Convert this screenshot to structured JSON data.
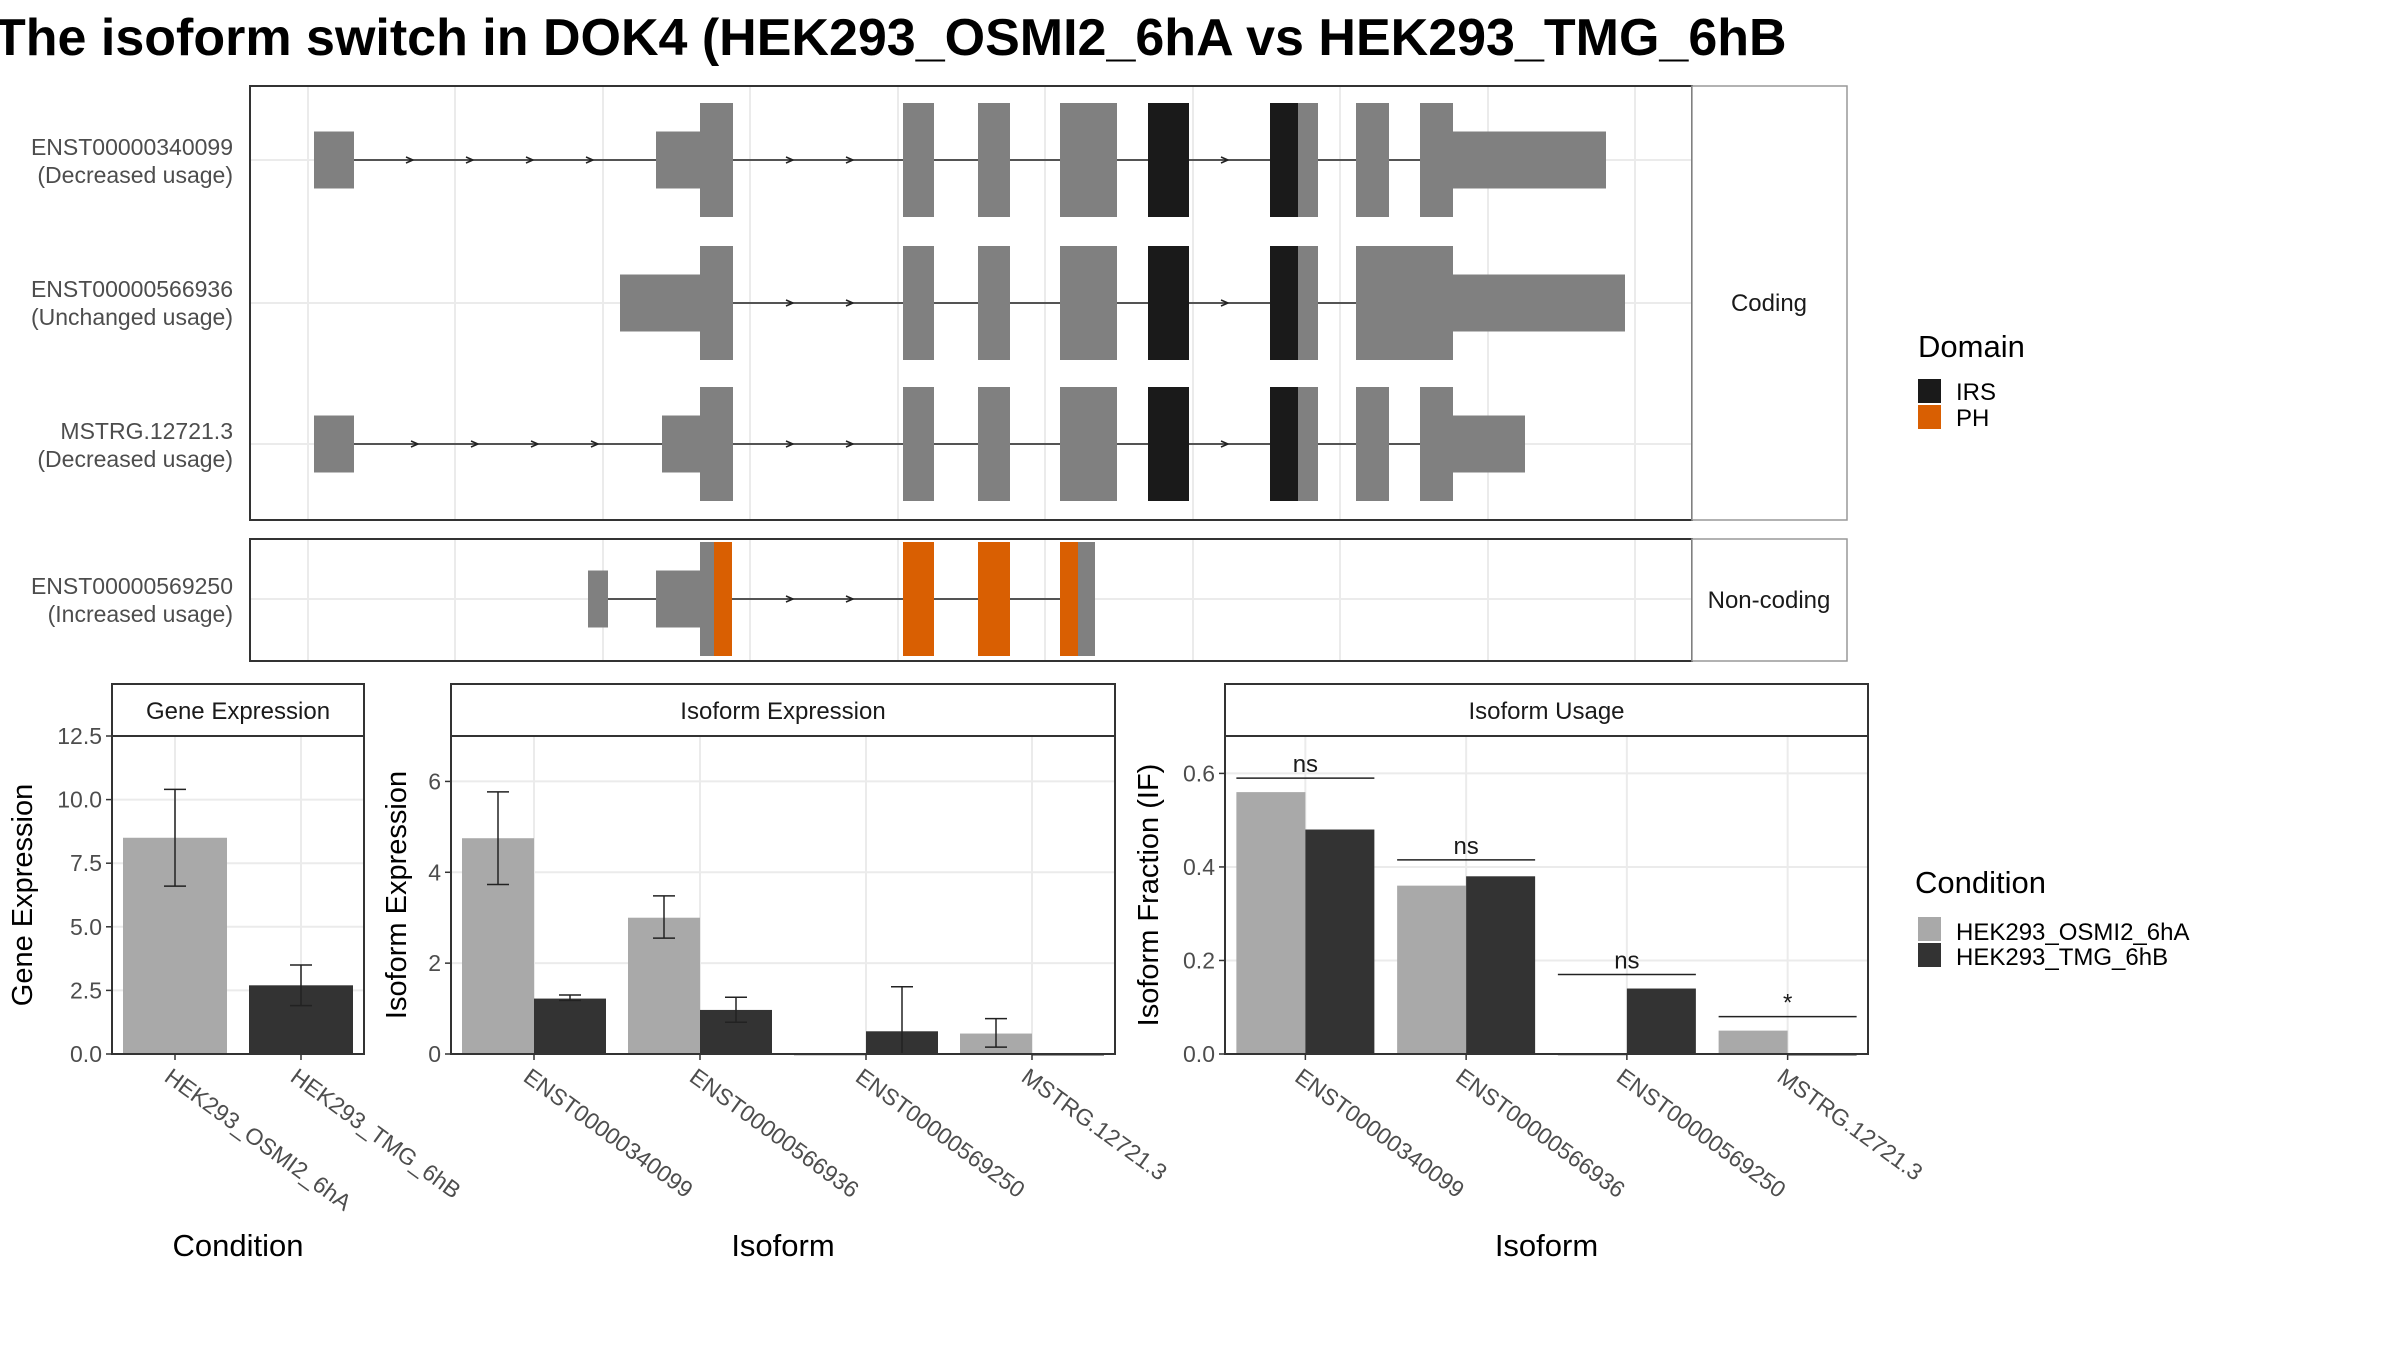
{
  "title": "The isoform switch in DOK4 (HEK293_OSMI2_6hA vs HEK293_TMG_6hB",
  "colors": {
    "exon": "#808080",
    "IRS": "#1a1a1a",
    "PH": "#d95f02",
    "condA": "#a9a9a9",
    "condB": "#333333",
    "panel_border": "#333333",
    "strip_fill": "#ffffff",
    "grid": "#ebebeb"
  },
  "structure": {
    "coding_strip": "Coding",
    "noncoding_strip": "Non-coding",
    "transcripts": [
      {
        "id": "ENST00000340099",
        "usage": "(Decreased usage)",
        "group": "coding"
      },
      {
        "id": "ENST00000566936",
        "usage": "(Unchanged usage)",
        "group": "coding"
      },
      {
        "id": "MSTRG.12721.3",
        "usage": "(Decreased usage)",
        "group": "coding"
      },
      {
        "id": "ENST00000569250",
        "usage": "(Increased usage)",
        "group": "noncoding"
      }
    ]
  },
  "legend_domain": {
    "title": "Domain",
    "items": [
      {
        "label": "IRS",
        "color": "#1a1a1a"
      },
      {
        "label": "PH",
        "color": "#d95f02"
      }
    ]
  },
  "legend_condition": {
    "title": "Condition",
    "items": [
      {
        "label": "HEK293_OSMI2_6hA",
        "color": "#a9a9a9"
      },
      {
        "label": "HEK293_TMG_6hB",
        "color": "#333333"
      }
    ]
  },
  "chart_data": [
    {
      "type": "bar",
      "title": "Gene Expression",
      "xlabel": "Condition",
      "ylabel": "Gene Expression",
      "categories": [
        "HEK293_OSMI2_6hA",
        "HEK293_TMG_6hB"
      ],
      "values": [
        8.5,
        2.7
      ],
      "error_low": [
        6.6,
        1.9
      ],
      "error_high": [
        10.4,
        3.5
      ],
      "ylim": [
        0,
        12.5
      ],
      "yticks": [
        "0.0",
        "2.5",
        "5.0",
        "7.5",
        "10.0",
        "12.5"
      ]
    },
    {
      "type": "bar",
      "title": "Isoform Expression",
      "xlabel": "Isoform",
      "ylabel": "Isoform Expression",
      "categories": [
        "ENST00000340099",
        "ENST00000566936",
        "ENST00000569250",
        "MSTRG.12721.3"
      ],
      "series": [
        {
          "name": "HEK293_OSMI2_6hA",
          "values": [
            4.75,
            3.0,
            0.0,
            0.45
          ],
          "error_low": [
            3.73,
            2.55,
            0.0,
            0.15
          ],
          "error_high": [
            5.77,
            3.48,
            0.0,
            0.78
          ]
        },
        {
          "name": "HEK293_TMG_6hB",
          "values": [
            1.22,
            0.97,
            0.5,
            0.0
          ],
          "error_low": [
            1.18,
            0.7,
            0.0,
            0.0
          ],
          "error_high": [
            1.3,
            1.25,
            1.48,
            0.0
          ]
        }
      ],
      "ylim": [
        0,
        7
      ],
      "yticks": [
        "0",
        "2",
        "4",
        "6"
      ]
    },
    {
      "type": "bar",
      "title": "Isoform Usage",
      "xlabel": "Isoform",
      "ylabel": "Isoform Fraction (IF)",
      "categories": [
        "ENST00000340099",
        "ENST00000566936",
        "ENST00000569250",
        "MSTRG.12721.3"
      ],
      "series": [
        {
          "name": "HEK293_OSMI2_6hA",
          "values": [
            0.56,
            0.36,
            0.0,
            0.05
          ]
        },
        {
          "name": "HEK293_TMG_6hB",
          "values": [
            0.48,
            0.38,
            0.14,
            0.0
          ]
        }
      ],
      "significance": [
        "ns",
        "ns",
        "ns",
        "*"
      ],
      "significance_y": [
        0.59,
        0.415,
        0.17,
        0.08
      ],
      "ylim": [
        0,
        0.68
      ],
      "yticks": [
        "0.0",
        "0.2",
        "0.4",
        "0.6"
      ]
    }
  ]
}
